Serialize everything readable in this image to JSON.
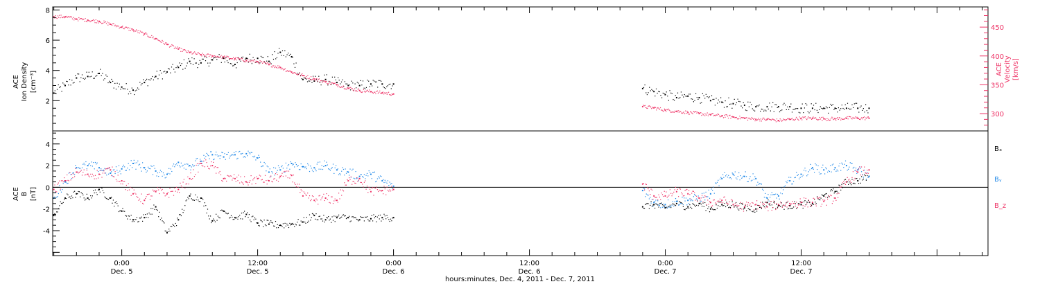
{
  "colors": {
    "density": "#000000",
    "velocity": "#ee3366",
    "bx": "#000000",
    "by": "#1f88e8",
    "bz": "#ee3366",
    "frame": "#000000"
  },
  "chart_data": [
    {
      "type": "scatter",
      "panel": "top",
      "ylabel_left": [
        "ACE",
        "Ion Density",
        "[cm⁻³]"
      ],
      "ylabel_right": [
        "ACE",
        "Velocity",
        "[km/s]"
      ],
      "ylim_left": [
        0,
        8.2
      ],
      "ylim_right": [
        270,
        485
      ],
      "yticks_left": [
        2,
        4,
        6,
        8
      ],
      "yticks_right": [
        300,
        350,
        400,
        450
      ],
      "series": [
        {
          "key": "density",
          "axis": "left",
          "points": [
            [
              -6,
              2.5
            ],
            [
              -5,
              3.0
            ],
            [
              -4,
              3.5
            ],
            [
              -3,
              3.6
            ],
            [
              -2,
              3.8
            ],
            [
              -1,
              3.2
            ],
            [
              0,
              2.9
            ],
            [
              1,
              2.7
            ],
            [
              2,
              3.2
            ],
            [
              3,
              3.6
            ],
            [
              4,
              3.9
            ],
            [
              5,
              4.2
            ],
            [
              6,
              4.6
            ],
            [
              7,
              4.5
            ],
            [
              8,
              4.7
            ],
            [
              9,
              4.8
            ],
            [
              10,
              4.4
            ],
            [
              11,
              4.8
            ],
            [
              12,
              4.8
            ],
            [
              13,
              4.6
            ],
            [
              14,
              5.2
            ],
            [
              15,
              4.9
            ],
            [
              16,
              3.4
            ],
            [
              17,
              3.3
            ],
            [
              18,
              3.4
            ],
            [
              19,
              3.2
            ],
            [
              20,
              3.0
            ],
            [
              21,
              3.0
            ],
            [
              22,
              3.1
            ],
            [
              23,
              3.1
            ],
            [
              24,
              3.1
            ],
            [
              46,
              2.8
            ],
            [
              47,
              2.6
            ],
            [
              48,
              2.4
            ],
            [
              49,
              2.2
            ],
            [
              50,
              2.3
            ],
            [
              51,
              2.2
            ],
            [
              52,
              2.0
            ],
            [
              53,
              1.9
            ],
            [
              54,
              1.8
            ],
            [
              55,
              1.7
            ],
            [
              56,
              1.6
            ],
            [
              57,
              1.6
            ],
            [
              58,
              1.6
            ],
            [
              59,
              1.6
            ],
            [
              60,
              1.5
            ],
            [
              61,
              1.5
            ],
            [
              62,
              1.5
            ],
            [
              63,
              1.5
            ],
            [
              64,
              1.5
            ],
            [
              65,
              1.5
            ],
            [
              66,
              1.5
            ]
          ]
        },
        {
          "key": "velocity",
          "axis": "right",
          "points": [
            [
              -6,
              468
            ],
            [
              -5,
              468
            ],
            [
              -4,
              464
            ],
            [
              -3,
              462
            ],
            [
              -2,
              460
            ],
            [
              -1,
              455
            ],
            [
              0,
              450
            ],
            [
              1,
              445
            ],
            [
              2,
              438
            ],
            [
              3,
              430
            ],
            [
              4,
              420
            ],
            [
              5,
              412
            ],
            [
              6,
              406
            ],
            [
              7,
              402
            ],
            [
              8,
              400
            ],
            [
              9,
              398
            ],
            [
              10,
              395
            ],
            [
              11,
              392
            ],
            [
              12,
              390
            ],
            [
              13,
              385
            ],
            [
              14,
              380
            ],
            [
              15,
              372
            ],
            [
              16,
              366
            ],
            [
              17,
              360
            ],
            [
              18,
              355
            ],
            [
              19,
              350
            ],
            [
              20,
              344
            ],
            [
              21,
              340
            ],
            [
              22,
              338
            ],
            [
              23,
              336
            ],
            [
              24,
              334
            ],
            [
              46,
              312
            ],
            [
              47,
              310
            ],
            [
              48,
              306
            ],
            [
              49,
              304
            ],
            [
              50,
              302
            ],
            [
              51,
              300
            ],
            [
              52,
              298
            ],
            [
              53,
              296
            ],
            [
              54,
              294
            ],
            [
              55,
              292
            ],
            [
              56,
              290
            ],
            [
              57,
              290
            ],
            [
              58,
              288
            ],
            [
              59,
              290
            ],
            [
              60,
              292
            ],
            [
              61,
              292
            ],
            [
              62,
              291
            ],
            [
              63,
              291
            ],
            [
              64,
              292
            ],
            [
              65,
              292
            ],
            [
              66,
              292
            ]
          ]
        }
      ]
    },
    {
      "type": "scatter",
      "panel": "bottom",
      "ylabel_left": [
        "ACE",
        "B",
        "[nT]"
      ],
      "ylim": [
        -6.3,
        5.2
      ],
      "yticks": [
        -4,
        -2,
        0,
        2,
        4
      ],
      "legend": [
        "Bₓ",
        "Bᵧ",
        "B_z"
      ],
      "legend_placement": "right",
      "series": [
        {
          "key": "bx",
          "points": [
            [
              -6,
              -2.6
            ],
            [
              -5,
              -1.0
            ],
            [
              -4,
              -0.6
            ],
            [
              -3,
              -1.0
            ],
            [
              -2,
              -0.2
            ],
            [
              -1,
              -1.0
            ],
            [
              0,
              -2.2
            ],
            [
              1,
              -3.0
            ],
            [
              2,
              -2.8
            ],
            [
              3,
              -1.8
            ],
            [
              4,
              -4.2
            ],
            [
              5,
              -3.0
            ],
            [
              6,
              -0.8
            ],
            [
              7,
              -1.0
            ],
            [
              8,
              -3.1
            ],
            [
              9,
              -2.2
            ],
            [
              10,
              -2.8
            ],
            [
              11,
              -2.5
            ],
            [
              12,
              -3.3
            ],
            [
              13,
              -3.4
            ],
            [
              14,
              -3.5
            ],
            [
              15,
              -3.4
            ],
            [
              16,
              -3.2
            ],
            [
              17,
              -2.6
            ],
            [
              18,
              -3.0
            ],
            [
              19,
              -2.8
            ],
            [
              20,
              -2.8
            ],
            [
              21,
              -3.0
            ],
            [
              22,
              -2.9
            ],
            [
              23,
              -2.8
            ],
            [
              24,
              -2.8
            ],
            [
              46,
              -1.8
            ],
            [
              47,
              -1.6
            ],
            [
              48,
              -1.9
            ],
            [
              49,
              -1.5
            ],
            [
              50,
              -1.8
            ],
            [
              51,
              -1.5
            ],
            [
              52,
              -2.0
            ],
            [
              53,
              -1.6
            ],
            [
              54,
              -1.6
            ],
            [
              55,
              -1.9
            ],
            [
              56,
              -2.0
            ],
            [
              57,
              -1.4
            ],
            [
              58,
              -1.7
            ],
            [
              59,
              -1.7
            ],
            [
              60,
              -1.6
            ],
            [
              61,
              -1.5
            ],
            [
              62,
              -0.8
            ],
            [
              63,
              -0.4
            ],
            [
              64,
              0.5
            ],
            [
              65,
              0.6
            ],
            [
              66,
              1.0
            ]
          ]
        },
        {
          "key": "by",
          "points": [
            [
              -6,
              -1.0
            ],
            [
              -5,
              0.5
            ],
            [
              -4,
              1.8
            ],
            [
              -3,
              2.0
            ],
            [
              -2,
              1.8
            ],
            [
              -1,
              1.3
            ],
            [
              0,
              1.7
            ],
            [
              1,
              2.2
            ],
            [
              2,
              1.8
            ],
            [
              3,
              1.5
            ],
            [
              4,
              1.2
            ],
            [
              5,
              2.3
            ],
            [
              6,
              2.0
            ],
            [
              7,
              2.4
            ],
            [
              8,
              3.0
            ],
            [
              9,
              2.8
            ],
            [
              10,
              3.0
            ],
            [
              11,
              3.1
            ],
            [
              12,
              2.7
            ],
            [
              13,
              1.4
            ],
            [
              14,
              1.6
            ],
            [
              15,
              2.2
            ],
            [
              16,
              1.9
            ],
            [
              17,
              1.8
            ],
            [
              18,
              2.0
            ],
            [
              19,
              1.6
            ],
            [
              20,
              1.4
            ],
            [
              21,
              1.0
            ],
            [
              22,
              1.2
            ],
            [
              23,
              0.6
            ],
            [
              24,
              0.1
            ],
            [
              46,
              -0.3
            ],
            [
              47,
              -1.4
            ],
            [
              48,
              -1.6
            ],
            [
              49,
              -1.3
            ],
            [
              50,
              -1.2
            ],
            [
              51,
              -1.0
            ],
            [
              52,
              -0.6
            ],
            [
              53,
              0.8
            ],
            [
              54,
              1.2
            ],
            [
              55,
              1.0
            ],
            [
              56,
              0.8
            ],
            [
              57,
              -1.0
            ],
            [
              58,
              -0.8
            ],
            [
              59,
              0.6
            ],
            [
              60,
              1.2
            ],
            [
              61,
              1.8
            ],
            [
              62,
              1.6
            ],
            [
              63,
              1.8
            ],
            [
              64,
              2.0
            ],
            [
              65,
              1.6
            ],
            [
              66,
              1.0
            ]
          ]
        },
        {
          "key": "bz",
          "points": [
            [
              -6,
              -0.2
            ],
            [
              -5,
              0.6
            ],
            [
              -4,
              1.4
            ],
            [
              -3,
              1.2
            ],
            [
              -2,
              1.2
            ],
            [
              -1,
              1.6
            ],
            [
              0,
              0.6
            ],
            [
              1,
              -0.6
            ],
            [
              2,
              -1.2
            ],
            [
              3,
              -0.4
            ],
            [
              4,
              -0.6
            ],
            [
              5,
              -0.2
            ],
            [
              6,
              0.8
            ],
            [
              7,
              2.2
            ],
            [
              8,
              2.0
            ],
            [
              9,
              0.8
            ],
            [
              10,
              0.8
            ],
            [
              11,
              0.5
            ],
            [
              12,
              0.8
            ],
            [
              13,
              0.6
            ],
            [
              14,
              1.0
            ],
            [
              15,
              1.1
            ],
            [
              16,
              -0.8
            ],
            [
              17,
              -1.2
            ],
            [
              18,
              -1.0
            ],
            [
              19,
              -1.2
            ],
            [
              20,
              0.6
            ],
            [
              21,
              0.8
            ],
            [
              22,
              -0.4
            ],
            [
              23,
              -0.3
            ],
            [
              24,
              -0.2
            ],
            [
              46,
              0.3
            ],
            [
              47,
              -0.8
            ],
            [
              48,
              -0.8
            ],
            [
              49,
              -0.4
            ],
            [
              50,
              -0.6
            ],
            [
              51,
              -1.0
            ],
            [
              52,
              -1.4
            ],
            [
              53,
              -1.2
            ],
            [
              54,
              -1.6
            ],
            [
              55,
              -1.8
            ],
            [
              56,
              -1.6
            ],
            [
              57,
              -1.8
            ],
            [
              58,
              -1.6
            ],
            [
              59,
              -1.5
            ],
            [
              60,
              -1.4
            ],
            [
              61,
              -1.4
            ],
            [
              62,
              -1.3
            ],
            [
              63,
              -1.0
            ],
            [
              64,
              0.5
            ],
            [
              65,
              1.4
            ],
            [
              66,
              1.6
            ]
          ]
        }
      ]
    }
  ],
  "x_axis": {
    "xlim": [
      -6.1,
      76.5
    ],
    "major_ticks": [
      {
        "hours": 0,
        "time": "0:00",
        "day": "Dec. 5"
      },
      {
        "hours": 12,
        "time": "12:00",
        "day": "Dec. 5"
      },
      {
        "hours": 24,
        "time": "0:00",
        "day": "Dec. 6"
      },
      {
        "hours": 36,
        "time": "12:00",
        "day": "Dec. 6"
      },
      {
        "hours": 48,
        "time": "0:00",
        "day": "Dec. 7"
      },
      {
        "hours": 60,
        "time": "12:00",
        "day": "Dec. 7"
      }
    ],
    "xlabel": "hours:minutes, Dec.  4, 2011 - Dec.  7, 2011"
  }
}
